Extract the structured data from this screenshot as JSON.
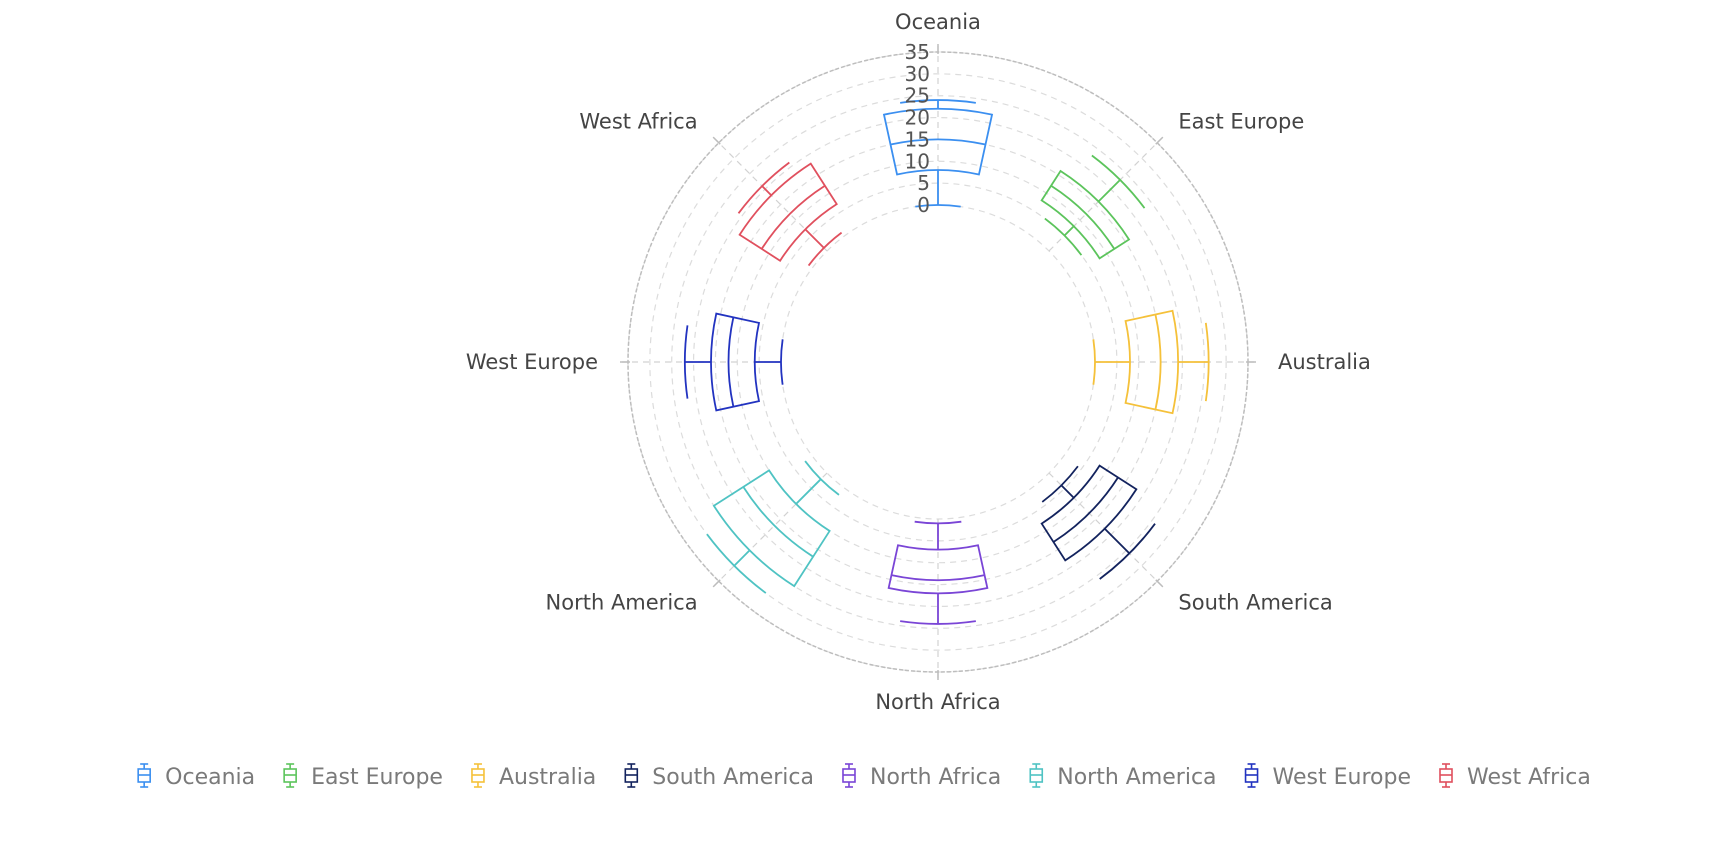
{
  "chart_data": {
    "type": "polar-boxplot",
    "title": "",
    "categories": [
      "Oceania",
      "East Europe",
      "Australia",
      "South America",
      "North Africa",
      "North America",
      "West Europe",
      "West Africa"
    ],
    "radial_axis": {
      "range": [
        0,
        35
      ],
      "ticks": [
        "0",
        "5",
        "10",
        "15",
        "20",
        "25",
        "30",
        "35"
      ],
      "tick_values": [
        0,
        5,
        10,
        15,
        20,
        25,
        30,
        35
      ]
    },
    "grid": true,
    "legend_position": "bottom",
    "series": [
      {
        "name": "Oceania",
        "color": "#3b8ff0",
        "min": 0,
        "q1": 8,
        "median": 15,
        "q3": 22,
        "max": 24
      },
      {
        "name": "East Europe",
        "color": "#5cc45c",
        "min": 5,
        "q1": 8,
        "median": 12,
        "q3": 16,
        "max": 23
      },
      {
        "name": "Australia",
        "color": "#f5c13a",
        "min": 0,
        "q1": 8,
        "median": 15,
        "q3": 19,
        "max": 26
      },
      {
        "name": "South America",
        "color": "#13235e",
        "min": 4,
        "q1": 8,
        "median": 13,
        "q3": 18,
        "max": 26
      },
      {
        "name": "North Africa",
        "color": "#7a45d6",
        "min": 1,
        "q1": 7,
        "median": 14,
        "q3": 17,
        "max": 24
      },
      {
        "name": "North America",
        "color": "#4fc3c3",
        "min": 2,
        "q1": 10,
        "median": 17,
        "q3": 25,
        "max": 30
      },
      {
        "name": "West Europe",
        "color": "#2233c0",
        "min": 0,
        "q1": 6,
        "median": 12,
        "q3": 16,
        "max": 22
      },
      {
        "name": "West Africa",
        "color": "#e0505e",
        "min": 1,
        "q1": 7,
        "median": 12,
        "q3": 18,
        "max": 21
      }
    ]
  }
}
